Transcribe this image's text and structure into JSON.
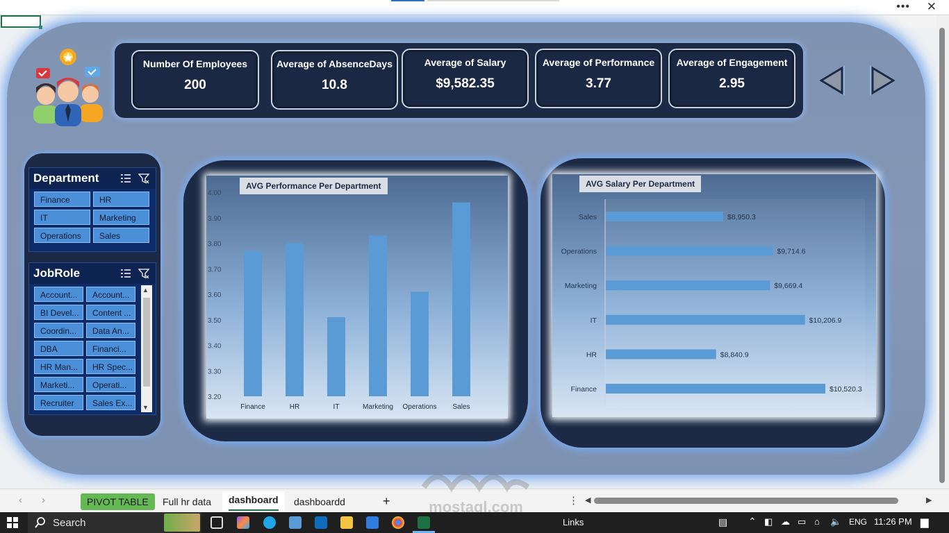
{
  "kpis": [
    {
      "label": "Number Of Employees",
      "value": "200"
    },
    {
      "label": "Average of AbsenceDays",
      "value": "10.8"
    },
    {
      "label": "Average of Salary",
      "value": "$9,582.35"
    },
    {
      "label": "Average of Performance",
      "value": "3.77"
    },
    {
      "label": "Average of Engagement",
      "value": "2.95"
    }
  ],
  "department_slicer": {
    "title": "Department",
    "items": [
      "Finance",
      "HR",
      "IT",
      "Marketing",
      "Operations",
      "Sales"
    ]
  },
  "jobrole_slicer": {
    "title": "JobRole",
    "items": [
      "Account...",
      "Account...",
      "BI Devel...",
      "Content ...",
      "Coordin...",
      "Data An...",
      "DBA",
      "Financi...",
      "HR Man...",
      "HR Spec...",
      "Marketi...",
      "Operati...",
      "Recruiter",
      "Sales Ex..."
    ]
  },
  "chart_data": [
    {
      "type": "bar",
      "title": "AVG Performance  Per Department",
      "categories": [
        "Finance",
        "HR",
        "IT",
        "Marketing",
        "Operations",
        "Sales"
      ],
      "values": [
        3.77,
        3.8,
        3.51,
        3.83,
        3.61,
        3.96
      ],
      "ylim": [
        3.2,
        4.0
      ],
      "yticks": [
        "4.00",
        "3.90",
        "3.80",
        "3.70",
        "3.60",
        "3.50",
        "3.40",
        "3.30",
        "3.20"
      ],
      "color": "#5b9bd5"
    },
    {
      "type": "bar",
      "orientation": "horizontal",
      "title": "AVG Salary Per Department",
      "categories": [
        "Sales",
        "Operations",
        "Marketing",
        "IT",
        "HR",
        "Finance"
      ],
      "values": [
        8950.3,
        9714.6,
        9669.4,
        10206.9,
        8840.9,
        10520.3
      ],
      "labels": [
        "$8,950.3",
        "$9,714.6",
        "$9,669.4",
        "$10,206.9",
        "$8,840.9",
        "$10,520.3"
      ],
      "color": "#5b9bd5"
    }
  ],
  "sheet_tabs": [
    "PIVOT TABLE",
    "Full hr data",
    "dashboard",
    "dashboardd"
  ],
  "add_sheet": "+",
  "taskbar": {
    "search": "Search",
    "links": "Links",
    "lang": "ENG",
    "time": "11:26 PM"
  },
  "watermark": "mostaql.com"
}
